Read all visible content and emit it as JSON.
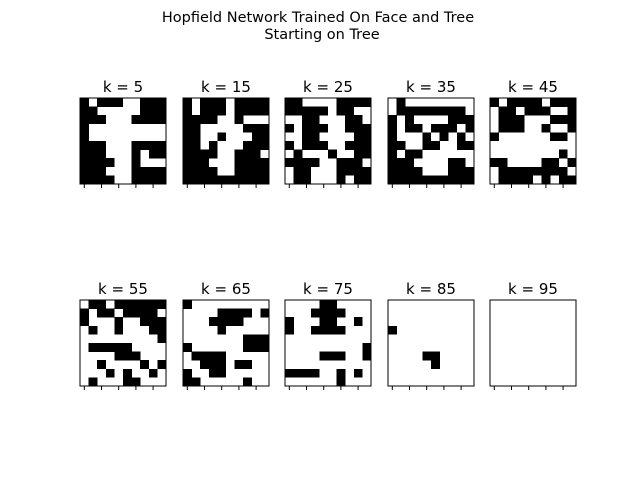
{
  "chart_data": {
    "type": "heatmap",
    "title": "Hopfield Network Trained On Face and Tree",
    "subtitle": "Starting on Tree",
    "grid_size": [
      10,
      10
    ],
    "colors": {
      "on": "#000000",
      "off": "#ffffff",
      "frame": "#000000"
    },
    "xticks": [
      0,
      2,
      4,
      6,
      8
    ],
    "yticks": [],
    "panels": [
      {
        "label": "k = 5",
        "cells": [
          "1011100111",
          "1100000111",
          "1110001111",
          "1000000000",
          "1000000000",
          "1110001111",
          "1110001011",
          "1111001000",
          "1110001111",
          "1111001111"
        ]
      },
      {
        "label": "k = 15",
        "cells": [
          "1011101111",
          "1011101111",
          "1111001000",
          "1100000111",
          "1100100011",
          "1101000111",
          "1111001110",
          "1110001111",
          "1111001111",
          "1111111111"
        ]
      },
      {
        "label": "k = 25",
        "cells": [
          "1100001111",
          "1111101100",
          "0011000110",
          "1011100111",
          "0011000011",
          "1011100111",
          "0100010011",
          "1111001110",
          "0110001111",
          "0110001011"
        ]
      },
      {
        "label": "k = 35",
        "cells": [
          "0100000000",
          "0111111110",
          "1010000111",
          "1011011101",
          "1000101010",
          "1100110011",
          "1011000000",
          "1110000110",
          "1111000111",
          "1111111111"
        ]
      },
      {
        "label": "k = 45",
        "cells": [
          "1011110111",
          "0110111001",
          "0111000111",
          "0111001001",
          "1000000110",
          "0000000000",
          "0000000010",
          "1100001101",
          "0111111110",
          "0111101011"
        ]
      },
      {
        "label": "k = 55",
        "cells": [
          "0110111111",
          "1011011110",
          "1000100111",
          "0100100011",
          "0000000001",
          "0111110000",
          "0000111000",
          "0010000101",
          "0001010010",
          "0100011000"
        ]
      },
      {
        "label": "k = 65",
        "cells": [
          "1000000000",
          "0000111101",
          "0001111000",
          "0000100000",
          "0000000111",
          "1000000111",
          "0111100000",
          "0011101100",
          "1001100000",
          "1100000100"
        ]
      },
      {
        "label": "k = 75",
        "cells": [
          "0000110000",
          "0001111000",
          "1000110010",
          "1001111000",
          "0000000000",
          "0000000001",
          "0000111001",
          "0000000000",
          "1111001010",
          "0000001000"
        ]
      },
      {
        "label": "k = 85",
        "cells": [
          "0000000000",
          "0000000000",
          "0000000000",
          "1000000000",
          "0000000000",
          "0000000000",
          "0000110000",
          "0000010000",
          "0000000000",
          "0000000000"
        ]
      },
      {
        "label": "k = 95",
        "cells": [
          "0000000000",
          "0000000000",
          "0000000000",
          "0000000000",
          "0000000000",
          "0000000000",
          "0000000000",
          "0000000000",
          "0000000000",
          "0000000000"
        ]
      }
    ]
  }
}
